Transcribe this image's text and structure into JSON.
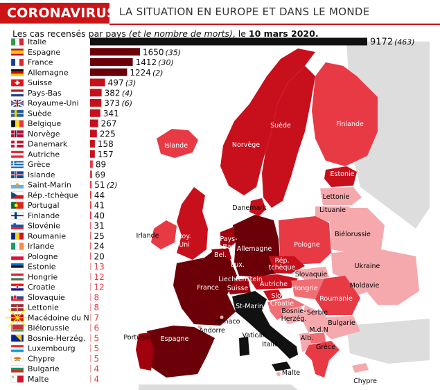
{
  "header": {
    "tag": "CORONAVIRUS",
    "title": "LA SITUATION EN EUROPE ET DANS LE MONDE"
  },
  "subtitle": {
    "lead": "Les cas recensés par pays ",
    "paren": "(et le nombre de morts)",
    "tail": ", le ",
    "date": "10 mars 2020."
  },
  "colors": {
    "accent": "#cc1316",
    "italy": "#111111",
    "darkest": "#6b0008",
    "dark": "#a1000d",
    "mid": "#c8101c",
    "light": "#e83a45",
    "lighter": "#ef6f75",
    "lightest": "#f5a9ad",
    "nodata": "#dddddd",
    "sea": "#ffffff"
  },
  "chart_data": {
    "type": "bar",
    "orientation": "horizontal",
    "categories": [
      "Italie",
      "Espagne",
      "France",
      "Allemagne",
      "Suisse",
      "Pays-Bas",
      "Royaume-Uni",
      "Suède",
      "Belgique",
      "Norvège",
      "Danemark",
      "Autriche",
      "Grèce",
      "Islande",
      "Saint-Marin",
      "Rép.-tchèque",
      "Portugal",
      "Finlande",
      "Slovénie",
      "Roumanie",
      "Irlande",
      "Pologne",
      "Estonie",
      "Hongrie",
      "Croatie",
      "Slovaquie",
      "Lettonie",
      "Macédoine du N.",
      "Biélorussie",
      "Bosnie-Herzég.",
      "Luxembourg",
      "Chypre",
      "Bulgarie",
      "Malte"
    ],
    "values": [
      9172,
      1650,
      1412,
      1224,
      497,
      382,
      373,
      341,
      267,
      225,
      158,
      157,
      89,
      69,
      51,
      44,
      41,
      40,
      31,
      25,
      24,
      20,
      13,
      12,
      12,
      8,
      8,
      7,
      6,
      5,
      5,
      5,
      4,
      4
    ],
    "deaths": [
      463,
      35,
      30,
      2,
      3,
      4,
      6,
      null,
      null,
      null,
      null,
      null,
      null,
      null,
      2,
      null,
      null,
      null,
      null,
      null,
      null,
      null,
      null,
      null,
      null,
      null,
      null,
      null,
      null,
      null,
      null,
      null,
      null,
      null
    ],
    "flag_icons": [
      "flag-italy",
      "flag-spain",
      "flag-france",
      "flag-germany",
      "flag-switzerland",
      "flag-netherlands",
      "flag-uk",
      "flag-sweden",
      "flag-belgium",
      "flag-norway",
      "flag-denmark",
      "flag-austria",
      "flag-greece",
      "flag-iceland",
      "flag-san-marino",
      "flag-czech-republic",
      "flag-portugal",
      "flag-finland",
      "flag-slovenia",
      "flag-romania",
      "flag-ireland",
      "flag-poland",
      "flag-estonia",
      "flag-hungary",
      "flag-croatia",
      "flag-slovakia",
      "flag-latvia",
      "flag-north-macedonia",
      "flag-belarus",
      "flag-bosnia",
      "flag-luxembourg",
      "flag-cyprus",
      "flag-bulgaria",
      "flag-malta"
    ],
    "title": "Les cas recensés par pays (et le nombre de morts), le 10 mars 2020.",
    "xlabel": "",
    "ylabel": "",
    "grid": false,
    "legend": "none"
  },
  "map": {
    "labels": [
      {
        "name": "map-label-suede",
        "text": "Suède",
        "color": "#ffffff"
      },
      {
        "name": "map-label-finlande",
        "text": "Finlande",
        "color": "#ffffff"
      },
      {
        "name": "map-label-islande",
        "text": "Islande",
        "color": "#ffffff"
      },
      {
        "name": "map-label-norvege",
        "text": "Norvège",
        "color": "#ffffff"
      },
      {
        "name": "map-label-estonie",
        "text": "Estonie",
        "color": "#ffffff"
      },
      {
        "name": "map-label-lettonie",
        "text": "Lettonie",
        "color": "#000000"
      },
      {
        "name": "map-label-lituanie",
        "text": "Lituanie",
        "color": "#000000"
      },
      {
        "name": "map-label-danemark",
        "text": "Danemark",
        "color": "#000000"
      },
      {
        "name": "map-label-irlande",
        "text": "Irlande",
        "color": "#000000"
      },
      {
        "name": "map-label-roy",
        "text": "Roy.",
        "color": "#ffffff"
      },
      {
        "name": "map-label-uni",
        "text": "Uni",
        "color": "#ffffff"
      },
      {
        "name": "map-label-pays",
        "text": "Pays-",
        "color": "#ffffff"
      },
      {
        "name": "map-label-bas",
        "text": "Bas",
        "color": "#ffffff"
      },
      {
        "name": "map-label-allemagne",
        "text": "Allemagne",
        "color": "#ffffff"
      },
      {
        "name": "map-label-pologne",
        "text": "Pologne",
        "color": "#ffffff"
      },
      {
        "name": "map-label-bielorussie",
        "text": "Biélorussie",
        "color": "#000000"
      },
      {
        "name": "map-label-bel",
        "text": "Bel.",
        "color": "#ffffff"
      },
      {
        "name": "map-label-lux",
        "text": "Lux.",
        "color": "#ffffff"
      },
      {
        "name": "map-label-rep",
        "text": "Rép.",
        "color": "#ffffff"
      },
      {
        "name": "map-label-tcheque",
        "text": "tchèque",
        "color": "#ffffff"
      },
      {
        "name": "map-label-ukraine",
        "text": "Ukraine",
        "color": "#000000"
      },
      {
        "name": "map-label-slovaquie",
        "text": "Slovaquie",
        "color": "#000000"
      },
      {
        "name": "map-label-france",
        "text": "France",
        "color": "#ffffff"
      },
      {
        "name": "map-label-liechtenstein",
        "text": "Liechtenstein",
        "color": "#ffffff"
      },
      {
        "name": "map-label-suisse",
        "text": "Suisse",
        "color": "#ffffff"
      },
      {
        "name": "map-label-autriche",
        "text": "Autriche",
        "color": "#ffffff"
      },
      {
        "name": "map-label-hongrie",
        "text": "Hongrie",
        "color": "#ffffff"
      },
      {
        "name": "map-label-moldavie",
        "text": "Moldavie",
        "color": "#000000"
      },
      {
        "name": "map-label-slo",
        "text": "Slo.",
        "color": "#ffffff"
      },
      {
        "name": "map-label-roumanie",
        "text": "Roumanie",
        "color": "#ffffff"
      },
      {
        "name": "map-label-croatie",
        "text": "Croatie",
        "color": "#ffffff"
      },
      {
        "name": "map-label-st-marin",
        "text": "St-Marin",
        "color": "#ffffff"
      },
      {
        "name": "map-label-bosnie",
        "text": "Bosnie-",
        "color": "#000000"
      },
      {
        "name": "map-label-herzeg",
        "text": "Herzég.",
        "color": "#000000"
      },
      {
        "name": "map-label-serbie",
        "text": "Serbie",
        "color": "#000000"
      },
      {
        "name": "map-label-monaco",
        "text": "Monaco",
        "color": "#000000"
      },
      {
        "name": "map-label-bulgarie",
        "text": "Bulgarie",
        "color": "#000000"
      },
      {
        "name": "map-label-andorre",
        "text": "Andorre",
        "color": "#000000"
      },
      {
        "name": "map-label-mdn",
        "text": "M.d.N",
        "color": "#000000"
      },
      {
        "name": "map-label-portugal",
        "text": "Portugal",
        "color": "#000000"
      },
      {
        "name": "map-label-espagne",
        "text": "Espagne",
        "color": "#ffffff"
      },
      {
        "name": "map-label-vatican",
        "text": "Vatican",
        "color": "#000000"
      },
      {
        "name": "map-label-alb",
        "text": "Alb.",
        "color": "#000000"
      },
      {
        "name": "map-label-italie",
        "text": "Italie",
        "color": "#000000"
      },
      {
        "name": "map-label-grece",
        "text": "Grèce",
        "color": "#000000"
      },
      {
        "name": "map-label-malte",
        "text": "Malte",
        "color": "#000000"
      },
      {
        "name": "map-label-chypre",
        "text": "Chypre",
        "color": "#000000"
      }
    ]
  }
}
